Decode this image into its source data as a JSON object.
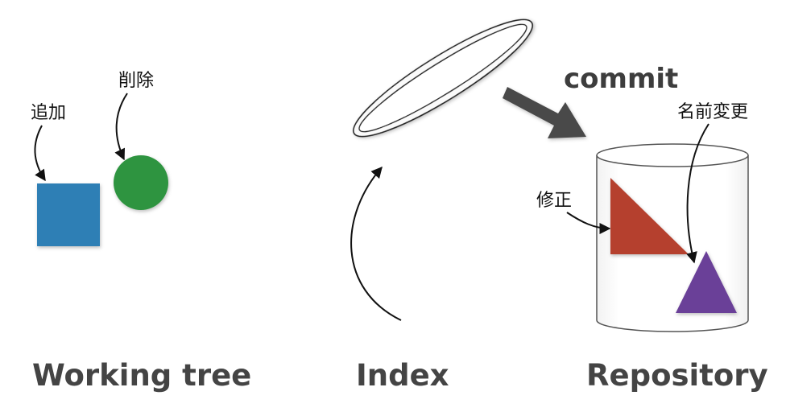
{
  "sections": {
    "working_tree": "Working tree",
    "index": "Index",
    "repository": "Repository"
  },
  "annotations": {
    "add": "追加",
    "delete": "削除",
    "modify": "修正",
    "rename": "名前変更"
  },
  "commit_label": "commit",
  "colors": {
    "added_square": "#2f7fb5",
    "deleted_circle": "#2f9440",
    "modified_triangle": "#b5412f",
    "renamed_triangle": "#6a3f98",
    "commit_arrow": "#4a4a4a",
    "section_text": "#444444"
  }
}
